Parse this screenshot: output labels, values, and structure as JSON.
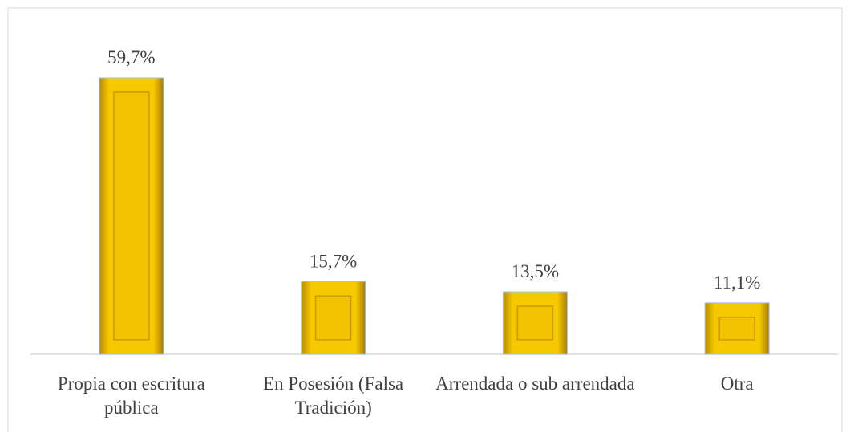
{
  "chart_data": {
    "type": "bar",
    "categories": [
      "Propia con escritura pública",
      "En Posesión (Falsa Tradición)",
      "Arrendada o sub arrendada",
      "Otra"
    ],
    "values": [
      59.7,
      15.7,
      13.5,
      11.1
    ],
    "value_labels": [
      "59,7%",
      "15,7%",
      "13,5%",
      "11,1%"
    ],
    "color": "#f2c200"
  }
}
